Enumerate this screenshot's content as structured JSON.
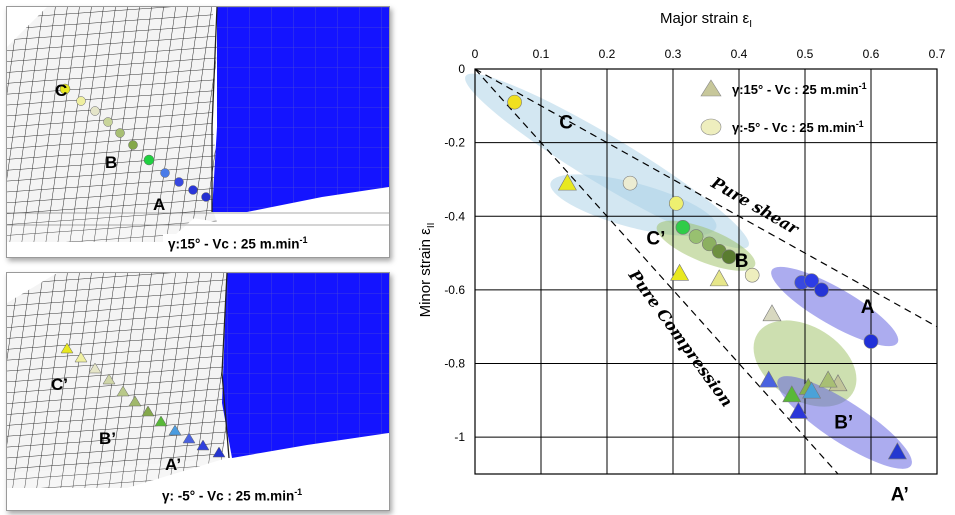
{
  "panels": [
    {
      "caption": "γ:15° -  Vc : 25 m.min",
      "caption_sup": "-1",
      "labels": [
        "C",
        "B",
        "A"
      ]
    },
    {
      "caption": "γ: -5° -  Vc : 25 m.min",
      "caption_sup": "-1",
      "labels": [
        "C’",
        "B’",
        "A’"
      ]
    }
  ],
  "chart_data": {
    "type": "scatter",
    "xlabel": "Major strain ε",
    "xlabel_sub": "I",
    "ylabel": "Minor strain ε",
    "ylabel_sub": "II",
    "xlim": [
      0,
      0.7
    ],
    "ylim": [
      -1.1,
      0
    ],
    "x_ticks": [
      "0",
      "0.1",
      "0.2",
      "0.3",
      "0.4",
      "0.5",
      "0.6",
      "0.7"
    ],
    "y_ticks": [
      "0",
      "-0.2",
      "-0.4",
      "-0.6",
      "-0.8",
      "-1"
    ],
    "x_axis_position": "top",
    "grid": true,
    "legend": [
      {
        "label": "γ:15° -  Vc : 25 m.min",
        "sup": "-1",
        "marker": "triangle"
      },
      {
        "label": "γ:-5° -  Vc : 25 m.min",
        "sup": "-1",
        "marker": "circle"
      }
    ],
    "legend_placement": "top-right",
    "lines": [
      {
        "name": "Pure shear",
        "x": [
          0,
          0.7
        ],
        "y": [
          0,
          -0.7
        ]
      },
      {
        "name": "Pure Compression",
        "x": [
          0,
          0.55
        ],
        "y": [
          0,
          -1.1
        ]
      }
    ],
    "annotations": [
      "Pure shear",
      "Pure Compression"
    ],
    "zones": [
      {
        "label": "C",
        "color": "#a8cfe6",
        "cx": 0.2,
        "cy": -0.25,
        "rx": 0.25,
        "ry": 0.065,
        "angle": 31
      },
      {
        "label": "C’",
        "color": "#a8cfe6",
        "cx": 0.24,
        "cy": -0.37,
        "rx": 0.13,
        "ry": 0.06,
        "angle": 15
      },
      {
        "label": "B",
        "color": "#9cbf62",
        "cx": 0.35,
        "cy": -0.48,
        "rx": 0.08,
        "ry": 0.045,
        "angle": 22
      },
      {
        "label": "A",
        "color": "#5a5ae0",
        "cx": 0.545,
        "cy": -0.645,
        "rx": 0.11,
        "ry": 0.05,
        "angle": 30
      },
      {
        "label": "B’",
        "color": "#9cbf62",
        "cx": 0.5,
        "cy": -0.8,
        "rx": 0.085,
        "ry": 0.1,
        "angle": 32
      },
      {
        "label": "A’",
        "color": "#5a5ae0",
        "cx": 0.56,
        "cy": -0.96,
        "rx": 0.12,
        "ry": 0.055,
        "angle": 33
      }
    ],
    "series": [
      {
        "name": "γ:15° -  Vc : 25 m.min",
        "marker": "triangle",
        "points": [
          {
            "x": 0.14,
            "y": -0.31,
            "color": "#e8e820"
          },
          {
            "x": 0.31,
            "y": -0.555,
            "color": "#e8e820"
          },
          {
            "x": 0.37,
            "y": -0.57,
            "color": "#e6e68a"
          },
          {
            "x": 0.45,
            "y": -0.665,
            "color": "#d8d8c0"
          },
          {
            "x": 0.55,
            "y": -0.855,
            "color": "#c2c69a"
          },
          {
            "x": 0.535,
            "y": -0.845,
            "color": "#a8bf74"
          },
          {
            "x": 0.505,
            "y": -0.865,
            "color": "#84b04c"
          },
          {
            "x": 0.48,
            "y": -0.885,
            "color": "#58b838"
          },
          {
            "x": 0.51,
            "y": -0.875,
            "color": "#4aa2d8"
          },
          {
            "x": 0.445,
            "y": -0.845,
            "color": "#4a62e0"
          },
          {
            "x": 0.49,
            "y": -0.93,
            "color": "#2a36d8"
          },
          {
            "x": 0.64,
            "y": -1.04,
            "color": "#2438d0"
          }
        ]
      },
      {
        "name": "γ:-5° -  Vc : 25 m.min",
        "marker": "circle",
        "points": [
          {
            "x": 0.06,
            "y": -0.09,
            "color": "#f0e020"
          },
          {
            "x": 0.235,
            "y": -0.31,
            "color": "#ececd2"
          },
          {
            "x": 0.305,
            "y": -0.365,
            "color": "#eef070"
          },
          {
            "x": 0.42,
            "y": -0.56,
            "color": "#eeeebe"
          },
          {
            "x": 0.315,
            "y": -0.43,
            "color": "#30cc48"
          },
          {
            "x": 0.335,
            "y": -0.455,
            "color": "#98c070"
          },
          {
            "x": 0.355,
            "y": -0.475,
            "color": "#8cb060"
          },
          {
            "x": 0.37,
            "y": -0.495,
            "color": "#6e9040"
          },
          {
            "x": 0.385,
            "y": -0.51,
            "color": "#5a7c30"
          },
          {
            "x": 0.495,
            "y": -0.58,
            "color": "#3848e0"
          },
          {
            "x": 0.51,
            "y": -0.575,
            "color": "#2c3ce6"
          },
          {
            "x": 0.525,
            "y": -0.6,
            "color": "#2434d6"
          },
          {
            "x": 0.6,
            "y": -0.74,
            "color": "#2030d8"
          }
        ]
      }
    ]
  }
}
